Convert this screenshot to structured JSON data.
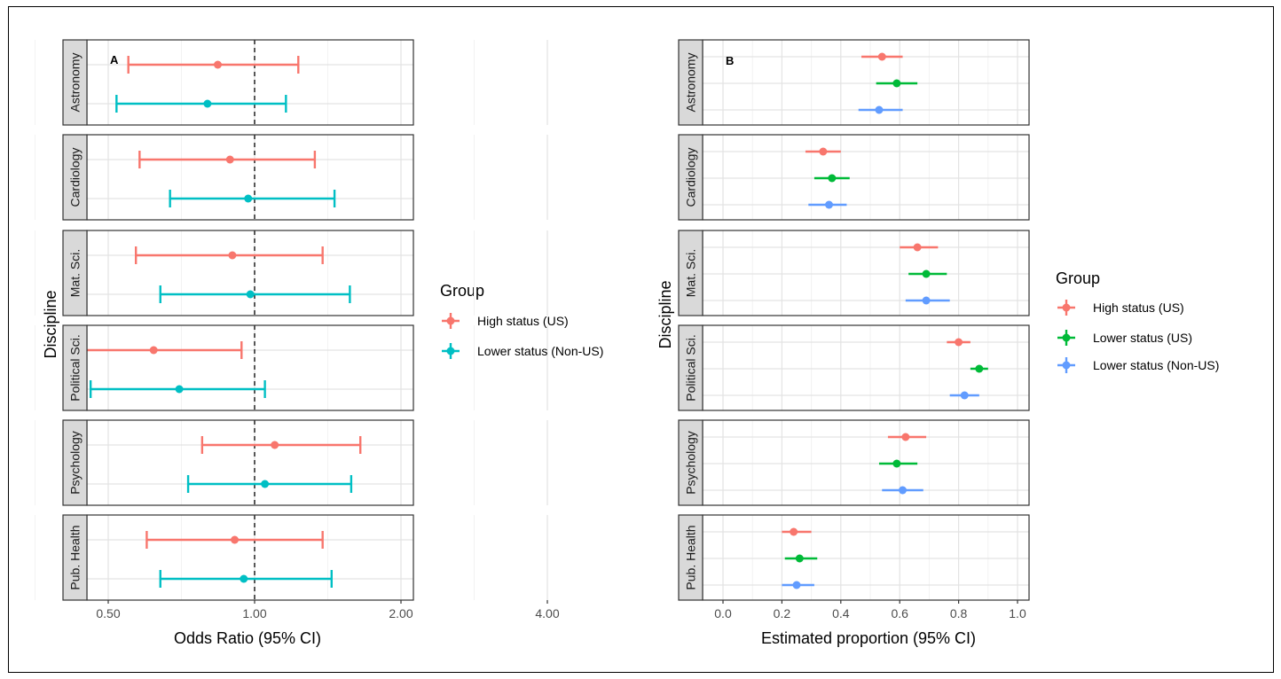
{
  "chart_data": [
    {
      "type": "forest",
      "panel_label": "A",
      "xlabel": "Odds Ratio (95% CI)",
      "ylabel": "Discipline",
      "x_scale": "log2",
      "xlim": [
        0.2,
        4.6
      ],
      "xticks": [
        "0.25",
        "0.50",
        "1.00",
        "2.00",
        "4.00"
      ],
      "reference_line": 1.0,
      "facets": [
        "Astronomy",
        "Cardiology",
        "Mat. Sci.",
        "Political Sci.",
        "Psychology",
        "Pub. Health"
      ],
      "legend": {
        "title": "Group",
        "entries": [
          {
            "label": "High status (US)",
            "color": "#F8766D"
          },
          {
            "label": "Lower status (Non-US)",
            "color": "#00BFC4"
          }
        ]
      },
      "series": [
        {
          "name": "High status (US)",
          "color": "#F8766D",
          "points": [
            {
              "facet": "Astronomy",
              "est": 0.84,
              "lo": 0.55,
              "hi": 1.23
            },
            {
              "facet": "Cardiology",
              "est": 0.89,
              "lo": 0.58,
              "hi": 1.33
            },
            {
              "facet": "Mat. Sci.",
              "est": 0.9,
              "lo": 0.57,
              "hi": 1.38
            },
            {
              "facet": "Political Sci.",
              "est": 0.62,
              "lo": 0.43,
              "hi": 0.94
            },
            {
              "facet": "Psychology",
              "est": 1.1,
              "lo": 0.78,
              "hi": 1.65
            },
            {
              "facet": "Pub. Health",
              "est": 0.91,
              "lo": 0.6,
              "hi": 1.38
            }
          ]
        },
        {
          "name": "Lower status (Non-US)",
          "color": "#00BFC4",
          "points": [
            {
              "facet": "Astronomy",
              "est": 0.8,
              "lo": 0.52,
              "hi": 1.16
            },
            {
              "facet": "Cardiology",
              "est": 0.97,
              "lo": 0.67,
              "hi": 1.46
            },
            {
              "facet": "Mat. Sci.",
              "est": 0.98,
              "lo": 0.64,
              "hi": 1.57
            },
            {
              "facet": "Political Sci.",
              "est": 0.7,
              "lo": 0.46,
              "hi": 1.05
            },
            {
              "facet": "Psychology",
              "est": 1.05,
              "lo": 0.73,
              "hi": 1.58
            },
            {
              "facet": "Pub. Health",
              "est": 0.95,
              "lo": 0.64,
              "hi": 1.44
            }
          ]
        }
      ]
    },
    {
      "type": "forest",
      "panel_label": "B",
      "xlabel": "Estimated proportion (95% CI)",
      "ylabel": "Discipline",
      "x_scale": "linear",
      "xlim": [
        -0.05,
        1.05
      ],
      "xticks": [
        "0.0",
        "0.2",
        "0.4",
        "0.6",
        "0.8",
        "1.0"
      ],
      "facets": [
        "Astronomy",
        "Cardiology",
        "Mat. Sci.",
        "Political Sci.",
        "Psychology",
        "Pub. Health"
      ],
      "legend": {
        "title": "Group",
        "entries": [
          {
            "label": "High status (US)",
            "color": "#F8766D"
          },
          {
            "label": "Lower status (US)",
            "color": "#00BA38"
          },
          {
            "label": "Lower status (Non-US)",
            "color": "#619CFF"
          }
        ]
      },
      "series": [
        {
          "name": "High status (US)",
          "color": "#F8766D",
          "points": [
            {
              "facet": "Astronomy",
              "est": 0.54,
              "lo": 0.47,
              "hi": 0.61
            },
            {
              "facet": "Cardiology",
              "est": 0.34,
              "lo": 0.28,
              "hi": 0.4
            },
            {
              "facet": "Mat. Sci.",
              "est": 0.66,
              "lo": 0.6,
              "hi": 0.73
            },
            {
              "facet": "Political Sci.",
              "est": 0.8,
              "lo": 0.76,
              "hi": 0.84
            },
            {
              "facet": "Psychology",
              "est": 0.62,
              "lo": 0.56,
              "hi": 0.69
            },
            {
              "facet": "Pub. Health",
              "est": 0.24,
              "lo": 0.2,
              "hi": 0.3
            }
          ]
        },
        {
          "name": "Lower status (US)",
          "color": "#00BA38",
          "points": [
            {
              "facet": "Astronomy",
              "est": 0.59,
              "lo": 0.52,
              "hi": 0.66
            },
            {
              "facet": "Cardiology",
              "est": 0.37,
              "lo": 0.31,
              "hi": 0.43
            },
            {
              "facet": "Mat. Sci.",
              "est": 0.69,
              "lo": 0.63,
              "hi": 0.76
            },
            {
              "facet": "Political Sci.",
              "est": 0.87,
              "lo": 0.84,
              "hi": 0.9
            },
            {
              "facet": "Psychology",
              "est": 0.59,
              "lo": 0.53,
              "hi": 0.66
            },
            {
              "facet": "Pub. Health",
              "est": 0.26,
              "lo": 0.21,
              "hi": 0.32
            }
          ]
        },
        {
          "name": "Lower status (Non-US)",
          "color": "#619CFF",
          "points": [
            {
              "facet": "Astronomy",
              "est": 0.53,
              "lo": 0.46,
              "hi": 0.61
            },
            {
              "facet": "Cardiology",
              "est": 0.36,
              "lo": 0.29,
              "hi": 0.42
            },
            {
              "facet": "Mat. Sci.",
              "est": 0.69,
              "lo": 0.62,
              "hi": 0.77
            },
            {
              "facet": "Political Sci.",
              "est": 0.82,
              "lo": 0.77,
              "hi": 0.87
            },
            {
              "facet": "Psychology",
              "est": 0.61,
              "lo": 0.54,
              "hi": 0.68
            },
            {
              "facet": "Pub. Health",
              "est": 0.25,
              "lo": 0.2,
              "hi": 0.31
            }
          ]
        }
      ]
    }
  ]
}
